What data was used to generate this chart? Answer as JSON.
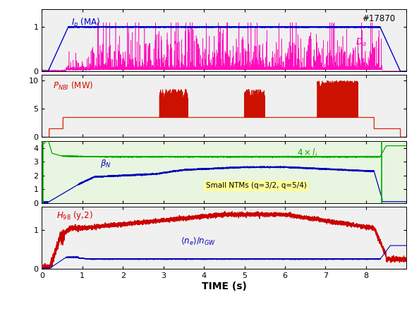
{
  "title": "#17870",
  "time_range": [
    0,
    9.0
  ],
  "panel_a": {
    "ylim": [
      0,
      1.4
    ],
    "yticks": [
      0,
      1
    ],
    "Ip_color": "#0000cc",
    "Da_color": "#ff00bb",
    "Ip_label": "I_p (MA)",
    "Da_label": "D_\\alpha",
    "bg": "#f0f0f0"
  },
  "panel_b": {
    "ylim": [
      0,
      11
    ],
    "yticks": [
      0,
      5,
      10
    ],
    "PNBI_color": "#cc1100",
    "PNBI_step_color": "#ee6644",
    "label": "P_{NBI} (MW)",
    "bg": "#f0f0f0"
  },
  "panel_c": {
    "ylim": [
      0,
      4.5
    ],
    "yticks": [
      0,
      1,
      2,
      3,
      4
    ],
    "li_color": "#00aa00",
    "betaN_color": "#0000bb",
    "li_label": "4xl_i",
    "betaN_label": "\\beta_N",
    "ntm_label": "Small NTMs (q=3/2, q=5/4)",
    "ntm_box_color": "#ffff99",
    "vline_color": "#00aa00",
    "bg": "#e8f5e0"
  },
  "panel_d": {
    "ylim": [
      0,
      1.6
    ],
    "yticks": [
      0,
      1
    ],
    "H98_color": "#cc0000",
    "ne_color": "#0000bb",
    "H98_label": "H_{98} (y,2)",
    "ne_label": "\\langle n_e \\rangle / n_{GW}",
    "bg": "#f0f0f0"
  },
  "xlabel": "TIME (s)",
  "xticks": [
    0,
    1,
    2,
    3,
    4,
    5,
    6,
    7,
    8
  ],
  "background_color": "#ffffff"
}
